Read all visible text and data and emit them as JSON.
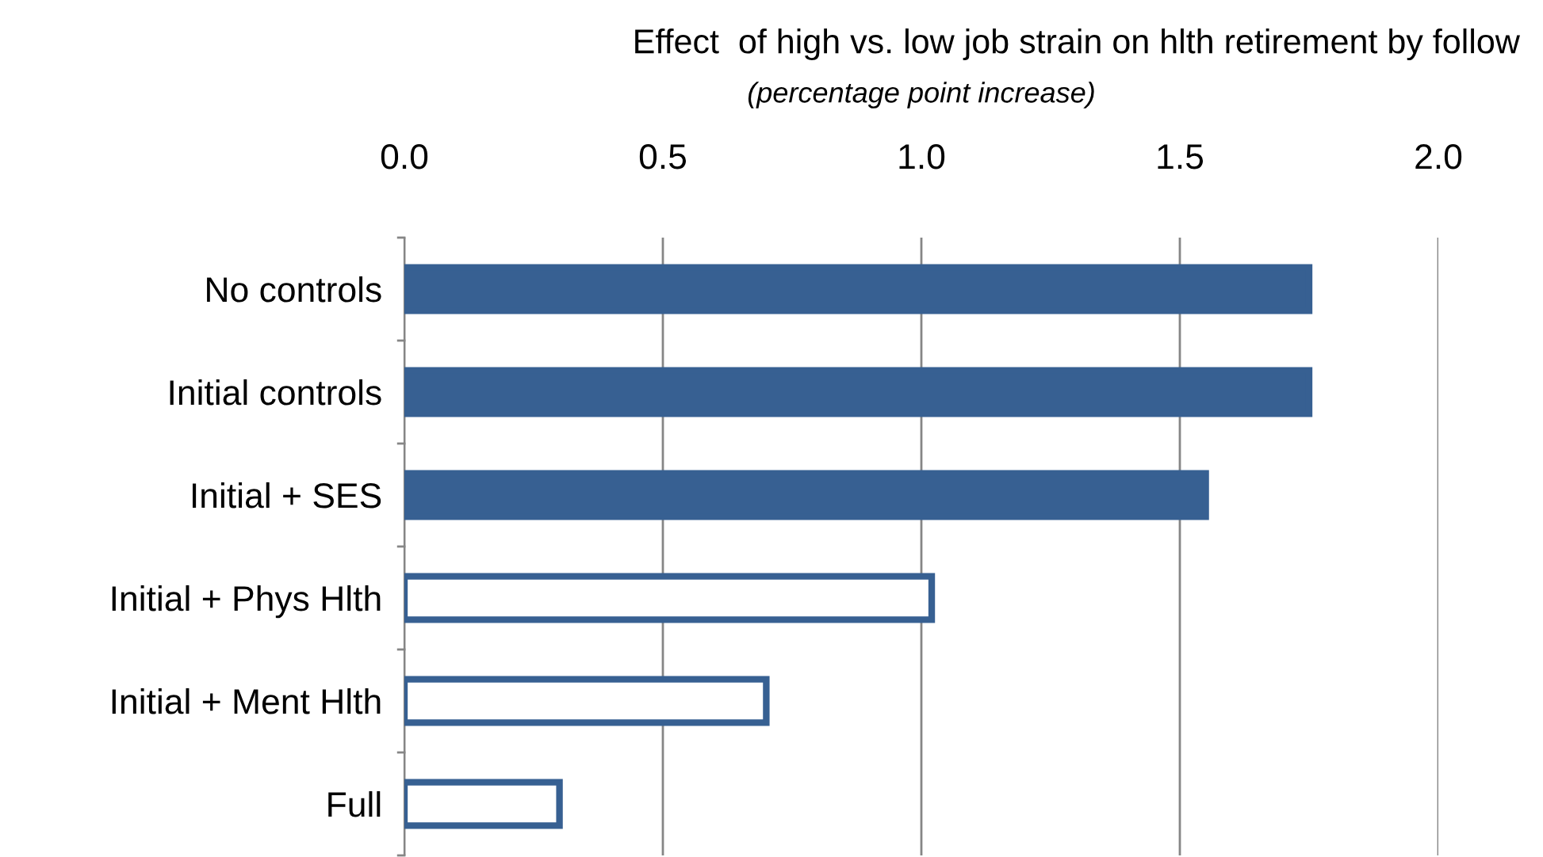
{
  "chart_data": {
    "type": "bar",
    "orientation": "horizontal",
    "title": "Effect  of high vs. low job strain on hlth retirement by follow",
    "subtitle": "(percentage point increase)",
    "categories": [
      "No controls",
      "Initial controls",
      "Initial + SES",
      "Initial + Phys Hlth",
      "Initial + Ment Hlth",
      "Full"
    ],
    "values": [
      1.75,
      1.75,
      1.55,
      1.02,
      0.7,
      0.3
    ],
    "color": "#376092",
    "colors": [
      "#376092",
      "#376092",
      "#376092",
      "#ffffff",
      "#ffffff",
      "#ffffff"
    ],
    "xlim": [
      0,
      2.0
    ],
    "xticks": [
      {
        "value": 0,
        "label": "0.0"
      },
      {
        "value": 0.5,
        "label": "0.5"
      },
      {
        "value": 1.0,
        "label": "1.0"
      },
      {
        "value": 1.5,
        "label": "1.5"
      },
      {
        "value": 2.0,
        "label": "2.0"
      }
    ],
    "grid": "x"
  }
}
